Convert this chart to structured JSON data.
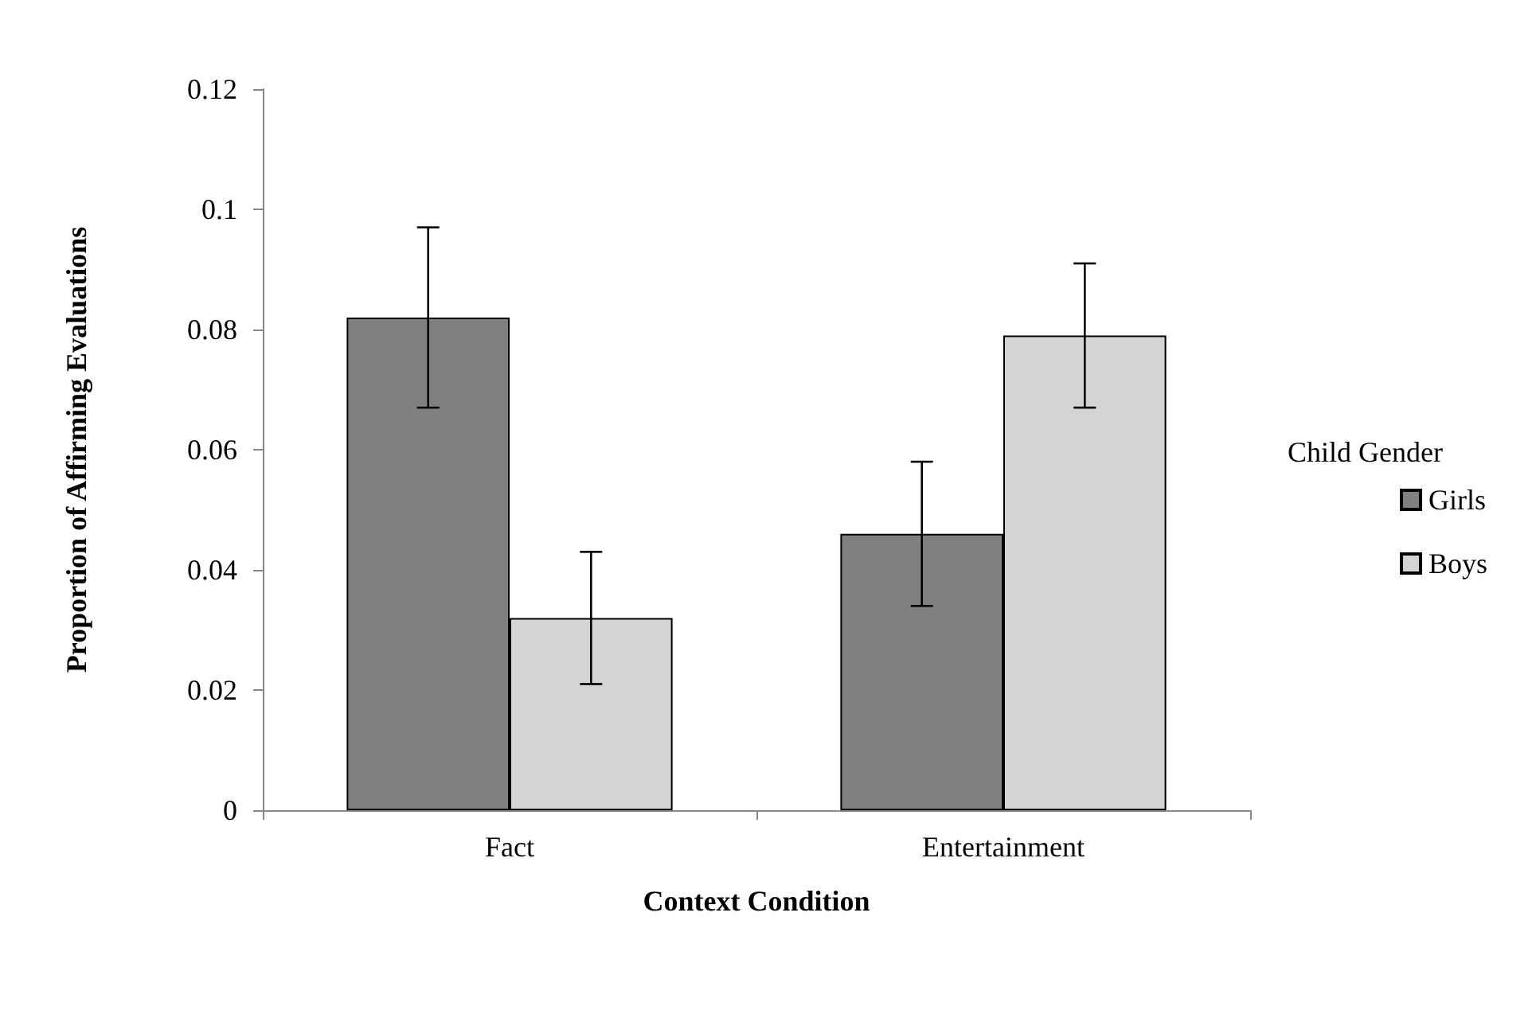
{
  "chart_data": {
    "type": "bar",
    "xlabel": "Context Condition",
    "ylabel": "Proportion of Affirming Evaluations",
    "legend_title": "Child Gender",
    "categories": [
      "Fact",
      "Entertainment"
    ],
    "series": [
      {
        "name": "Girls",
        "color": "#808080",
        "values": [
          0.082,
          0.046
        ],
        "errors": [
          [
            0.067,
            0.097
          ],
          [
            0.034,
            0.058
          ]
        ]
      },
      {
        "name": "Boys",
        "color": "#d4d4d4",
        "values": [
          0.032,
          0.079
        ],
        "errors": [
          [
            0.021,
            0.043
          ],
          [
            0.067,
            0.091
          ]
        ]
      }
    ],
    "ylim": [
      0,
      0.12
    ],
    "yticks": [
      0,
      0.02,
      0.04,
      0.06,
      0.08,
      0.1,
      0.12
    ],
    "grid": false,
    "legend": "right"
  }
}
